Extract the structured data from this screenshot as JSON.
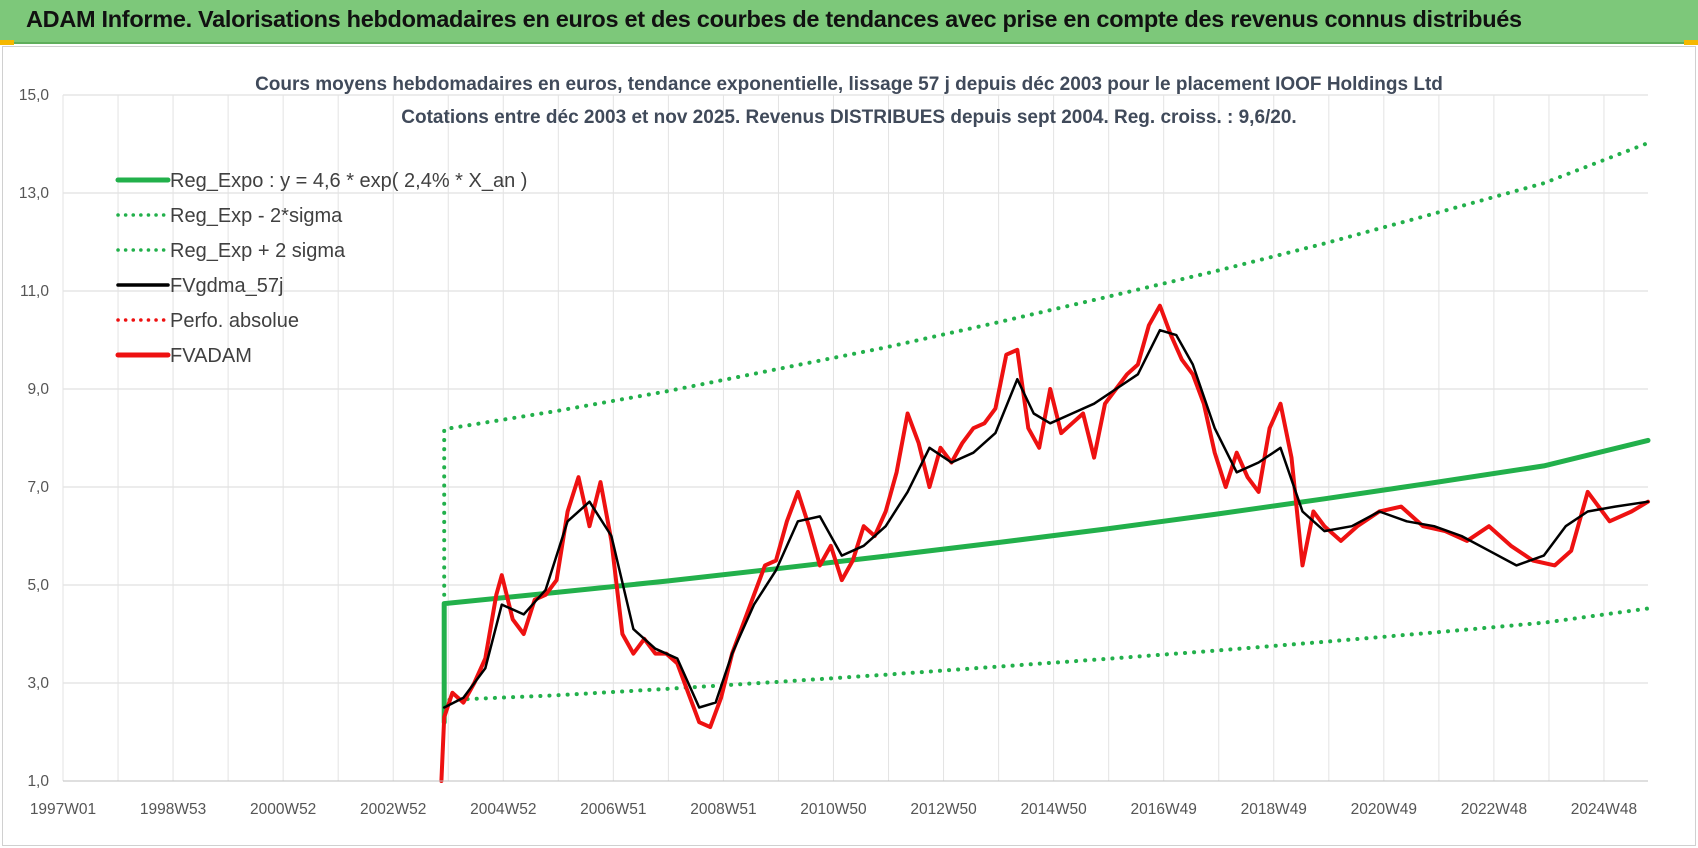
{
  "banner": {
    "title": "ADAM Informe. Valorisations hebdomadaires en euros et des courbes de tendances avec prise en compte des revenus connus distribués"
  },
  "chart_data": {
    "type": "line",
    "title": "Cours moyens hebdomadaires en euros, tendance exponentielle, lissage 57 j depuis déc 2003 pour le placement IOOF Holdings Ltd",
    "subtitle": "Cotations entre déc 2003 et nov 2025. Revenus DISTRIBUES depuis sept 2004. Reg. croiss. : 9,6/20.",
    "xlabel": "",
    "ylabel": "",
    "x_ticks": [
      "1997W01",
      "1998W53",
      "2000W52",
      "2002W52",
      "2004W52",
      "2006W51",
      "2008W51",
      "2010W50",
      "2012W50",
      "2014W50",
      "2016W49",
      "2018W49",
      "2020W49",
      "2022W48",
      "2024W48"
    ],
    "x_range": [
      1997.0,
      2025.9
    ],
    "ylim": [
      1.0,
      15.0
    ],
    "y_ticks": [
      "1,0",
      "3,0",
      "5,0",
      "7,0",
      "9,0",
      "11,0",
      "13,0",
      "15,0"
    ],
    "grid": true,
    "legend_position": "top-left",
    "legend": [
      {
        "label": "Reg_Expo : y = 4,6 * exp( 2,4% *  X_an )",
        "color": "#22b04b",
        "style": "solid-thick"
      },
      {
        "label": "Reg_Exp - 2*sigma",
        "color": "#22b04b",
        "style": "dotted"
      },
      {
        "label": "Reg_Exp + 2 sigma",
        "color": "#22b04b",
        "style": "dotted"
      },
      {
        "label": "FVgdma_57j",
        "color": "#000000",
        "style": "solid"
      },
      {
        "label": "Perfo. absolue",
        "color": "#ee1111",
        "style": "dotted"
      },
      {
        "label": "FVADAM",
        "color": "#ee1111",
        "style": "solid-thick"
      }
    ],
    "series": [
      {
        "name": "Reg_Expo : y = 4,6 * exp( 2,4% *  X_an )",
        "x": [
          2003.95,
          2006.0,
          2008.0,
          2010.0,
          2012.0,
          2014.0,
          2016.0,
          2018.0,
          2020.0,
          2022.0,
          2024.0,
          2025.9
        ],
        "values": [
          4.62,
          4.85,
          5.08,
          5.33,
          5.59,
          5.86,
          6.14,
          6.44,
          6.76,
          7.09,
          7.43,
          7.95
        ]
      },
      {
        "name": "Reg_Exp - 2*sigma",
        "x": [
          2003.95,
          2006.0,
          2008.0,
          2010.0,
          2012.0,
          2014.0,
          2016.0,
          2018.0,
          2020.0,
          2022.0,
          2024.0,
          2025.9
        ],
        "values": [
          2.65,
          2.75,
          2.88,
          3.02,
          3.17,
          3.33,
          3.49,
          3.66,
          3.84,
          4.03,
          4.23,
          4.52
        ]
      },
      {
        "name": "Reg_Exp + 2 sigma",
        "x": [
          2003.95,
          2006.0,
          2008.0,
          2010.0,
          2012.0,
          2014.0,
          2016.0,
          2018.0,
          2020.0,
          2022.0,
          2024.0,
          2025.9
        ],
        "values": [
          8.18,
          8.55,
          8.95,
          9.4,
          9.85,
          10.35,
          10.87,
          11.4,
          11.97,
          12.58,
          13.2,
          14.02
        ]
      },
      {
        "name": "FVgdma_57j",
        "x": [
          2003.95,
          2004.3,
          2004.7,
          2005.0,
          2005.4,
          2005.8,
          2006.2,
          2006.6,
          2007.0,
          2007.4,
          2007.8,
          2008.2,
          2008.6,
          2008.9,
          2009.2,
          2009.6,
          2010.0,
          2010.4,
          2010.8,
          2011.2,
          2011.6,
          2012.0,
          2012.4,
          2012.8,
          2013.2,
          2013.6,
          2014.0,
          2014.4,
          2014.7,
          2015.0,
          2015.4,
          2015.8,
          2016.2,
          2016.6,
          2017.0,
          2017.3,
          2017.6,
          2018.0,
          2018.4,
          2018.8,
          2019.2,
          2019.6,
          2020.0,
          2020.5,
          2021.0,
          2021.5,
          2022.0,
          2022.5,
          2023.0,
          2023.5,
          2024.0,
          2024.4,
          2024.8,
          2025.3,
          2025.9
        ],
        "values": [
          2.5,
          2.7,
          3.3,
          4.6,
          4.4,
          4.9,
          6.3,
          6.7,
          6.0,
          4.1,
          3.7,
          3.5,
          2.5,
          2.6,
          3.6,
          4.6,
          5.3,
          6.3,
          6.4,
          5.6,
          5.8,
          6.2,
          6.9,
          7.8,
          7.5,
          7.7,
          8.1,
          9.2,
          8.5,
          8.3,
          8.5,
          8.7,
          9.0,
          9.3,
          10.2,
          10.1,
          9.5,
          8.2,
          7.3,
          7.5,
          7.8,
          6.5,
          6.1,
          6.2,
          6.5,
          6.3,
          6.2,
          6.0,
          5.7,
          5.4,
          5.6,
          6.2,
          6.5,
          6.6,
          6.7
        ]
      },
      {
        "name": "FVADAM",
        "x": [
          2003.9,
          2003.95,
          2004.1,
          2004.3,
          2004.5,
          2004.7,
          2004.9,
          2005.0,
          2005.2,
          2005.4,
          2005.6,
          2005.8,
          2006.0,
          2006.2,
          2006.4,
          2006.6,
          2006.8,
          2007.0,
          2007.2,
          2007.4,
          2007.6,
          2007.8,
          2008.0,
          2008.2,
          2008.4,
          2008.6,
          2008.8,
          2009.0,
          2009.2,
          2009.4,
          2009.6,
          2009.8,
          2010.0,
          2010.2,
          2010.4,
          2010.6,
          2010.8,
          2011.0,
          2011.2,
          2011.4,
          2011.6,
          2011.8,
          2012.0,
          2012.2,
          2012.4,
          2012.6,
          2012.8,
          2013.0,
          2013.2,
          2013.4,
          2013.6,
          2013.8,
          2014.0,
          2014.2,
          2014.4,
          2014.6,
          2014.8,
          2015.0,
          2015.2,
          2015.4,
          2015.6,
          2015.8,
          2016.0,
          2016.2,
          2016.4,
          2016.6,
          2016.8,
          2017.0,
          2017.2,
          2017.4,
          2017.6,
          2017.8,
          2018.0,
          2018.2,
          2018.4,
          2018.6,
          2018.8,
          2019.0,
          2019.2,
          2019.4,
          2019.6,
          2019.8,
          2020.0,
          2020.3,
          2020.6,
          2021.0,
          2021.4,
          2021.8,
          2022.2,
          2022.6,
          2023.0,
          2023.4,
          2023.8,
          2024.2,
          2024.5,
          2024.8,
          2025.2,
          2025.6,
          2025.9
        ],
        "values": [
          1.0,
          2.3,
          2.8,
          2.6,
          3.0,
          3.5,
          4.8,
          5.2,
          4.3,
          4.0,
          4.7,
          4.8,
          5.1,
          6.5,
          7.2,
          6.2,
          7.1,
          5.9,
          4.0,
          3.6,
          3.9,
          3.6,
          3.6,
          3.4,
          2.8,
          2.2,
          2.1,
          2.7,
          3.6,
          4.2,
          4.8,
          5.4,
          5.5,
          6.3,
          6.9,
          6.2,
          5.4,
          5.8,
          5.1,
          5.5,
          6.2,
          6.0,
          6.5,
          7.3,
          8.5,
          7.9,
          7.0,
          7.8,
          7.5,
          7.9,
          8.2,
          8.3,
          8.6,
          9.7,
          9.8,
          8.2,
          7.8,
          9.0,
          8.1,
          8.3,
          8.5,
          7.6,
          8.7,
          9.0,
          9.3,
          9.5,
          10.3,
          10.7,
          10.1,
          9.6,
          9.3,
          8.7,
          7.7,
          7.0,
          7.7,
          7.2,
          6.9,
          8.2,
          8.7,
          7.6,
          5.4,
          6.5,
          6.2,
          5.9,
          6.2,
          6.5,
          6.6,
          6.2,
          6.1,
          5.9,
          6.2,
          5.8,
          5.5,
          5.4,
          5.7,
          6.9,
          6.3,
          6.5,
          6.7
        ]
      }
    ]
  }
}
